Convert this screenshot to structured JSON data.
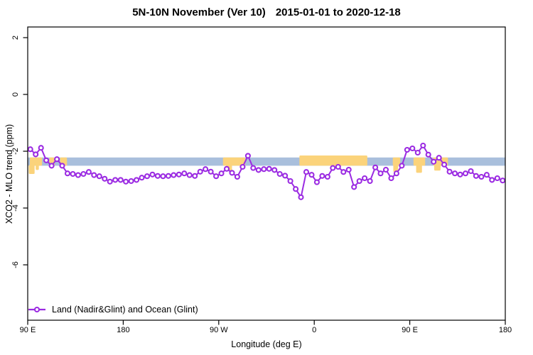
{
  "chart_data": {
    "type": "line",
    "title_main": "5N-10N November (Ver 10)",
    "title_dates": "2015-01-01 to 2020-12-18",
    "xlabel": "Longitude (deg E)",
    "ylabel": "XCO2 - MLO trend (ppm)",
    "xlim": [
      90,
      540
    ],
    "ylim": [
      -7.9,
      2.4
    ],
    "grid": false,
    "legend_position": "bottom-left-inside",
    "x_ticks": [
      {
        "pos": 90,
        "label": "90 E"
      },
      {
        "pos": 180,
        "label": "180"
      },
      {
        "pos": 270,
        "label": "90 W"
      },
      {
        "pos": 360,
        "label": "0"
      },
      {
        "pos": 450,
        "label": "90 E"
      },
      {
        "pos": 540,
        "label": "180"
      }
    ],
    "y_ticks": [
      {
        "pos": 2,
        "label": "2"
      },
      {
        "pos": 0,
        "label": "0"
      },
      {
        "pos": -2,
        "label": "-2"
      },
      {
        "pos": -4,
        "label": "-4"
      },
      {
        "pos": -6,
        "label": "-6"
      }
    ],
    "series": [
      {
        "name": "Land (Nadir&Glint) and Ocean (Glint)",
        "color": "#9b2be2",
        "marker": "open-circle",
        "x": [
          92.5,
          97.5,
          102.5,
          107.5,
          112.5,
          117.5,
          122.5,
          127.5,
          132.5,
          137.5,
          142.5,
          147.5,
          152.5,
          157.5,
          162.5,
          167.5,
          172.5,
          177.5,
          182.5,
          187.5,
          192.5,
          197.5,
          202.5,
          207.5,
          212.5,
          217.5,
          222.5,
          227.5,
          232.5,
          237.5,
          242.5,
          247.5,
          252.5,
          257.5,
          262.5,
          267.5,
          272.5,
          277.5,
          282.5,
          287.5,
          292.5,
          297.5,
          302.5,
          307.5,
          312.5,
          317.5,
          322.5,
          327.5,
          332.5,
          337.5,
          342.5,
          347.5,
          352.5,
          357.5,
          362.5,
          367.5,
          372.5,
          377.5,
          382.5,
          387.5,
          392.5,
          397.5,
          402.5,
          407.5,
          412.5,
          417.5,
          422.5,
          427.5,
          432.5,
          437.5,
          442.5,
          447.5,
          452.5,
          457.5,
          462.5,
          467.5,
          472.5,
          477.5,
          482.5,
          487.5,
          492.5,
          497.5,
          502.5,
          507.5,
          512.5,
          517.5,
          522.5,
          527.5,
          532.5,
          537.5
        ],
        "y": [
          -1.93,
          -2.11,
          -1.88,
          -2.32,
          -2.51,
          -2.28,
          -2.51,
          -2.78,
          -2.8,
          -2.84,
          -2.8,
          -2.73,
          -2.84,
          -2.88,
          -2.97,
          -3.07,
          -3.01,
          -3.01,
          -3.07,
          -3.05,
          -3.01,
          -2.93,
          -2.88,
          -2.82,
          -2.87,
          -2.88,
          -2.87,
          -2.84,
          -2.82,
          -2.78,
          -2.84,
          -2.87,
          -2.72,
          -2.63,
          -2.72,
          -2.88,
          -2.78,
          -2.62,
          -2.76,
          -2.9,
          -2.55,
          -2.16,
          -2.59,
          -2.66,
          -2.63,
          -2.62,
          -2.66,
          -2.8,
          -2.86,
          -3.05,
          -3.33,
          -3.62,
          -2.73,
          -2.83,
          -3.09,
          -2.87,
          -2.9,
          -2.59,
          -2.55,
          -2.73,
          -2.65,
          -3.26,
          -3.05,
          -2.95,
          -3.05,
          -2.57,
          -2.78,
          -2.65,
          -2.95,
          -2.78,
          -2.51,
          -1.95,
          -1.9,
          -2.05,
          -1.8,
          -2.12,
          -2.37,
          -2.23,
          -2.47,
          -2.72,
          -2.78,
          -2.82,
          -2.78,
          -2.7,
          -2.87,
          -2.9,
          -2.83,
          -3.01,
          -2.95,
          -3.03
        ]
      }
    ],
    "background_band": {
      "ocean_color": "#a9bfdc",
      "land_color": "#fbd37b",
      "y_top": -2.22,
      "y_bottom": -2.51,
      "land_segments": [
        {
          "x1": 92,
          "x2": 103.5
        },
        {
          "x1": 110.5,
          "x2": 115.5
        },
        {
          "x1": 120.5,
          "x2": 127
        },
        {
          "x1": 274,
          "x2": 295
        },
        {
          "x1": 346,
          "x2": 410,
          "tall": true
        },
        {
          "x1": 434,
          "x2": 441
        },
        {
          "x1": 453.5,
          "x2": 464.5
        },
        {
          "x1": 472,
          "x2": 486
        }
      ],
      "land_tails": [
        {
          "x1": 91,
          "x2": 96.5,
          "bottom": -2.8
        },
        {
          "x1": 97.5,
          "x2": 100.5,
          "bottom": -2.66
        },
        {
          "x1": 277,
          "x2": 282.5,
          "bottom": -2.7
        },
        {
          "x1": 434.5,
          "x2": 439,
          "bottom": -2.73
        },
        {
          "x1": 456,
          "x2": 461.5,
          "bottom": -2.76
        },
        {
          "x1": 473,
          "x2": 479,
          "bottom": -2.68
        }
      ]
    }
  },
  "legend": {
    "label": "Land (Nadir&Glint) and Ocean (Glint)"
  }
}
